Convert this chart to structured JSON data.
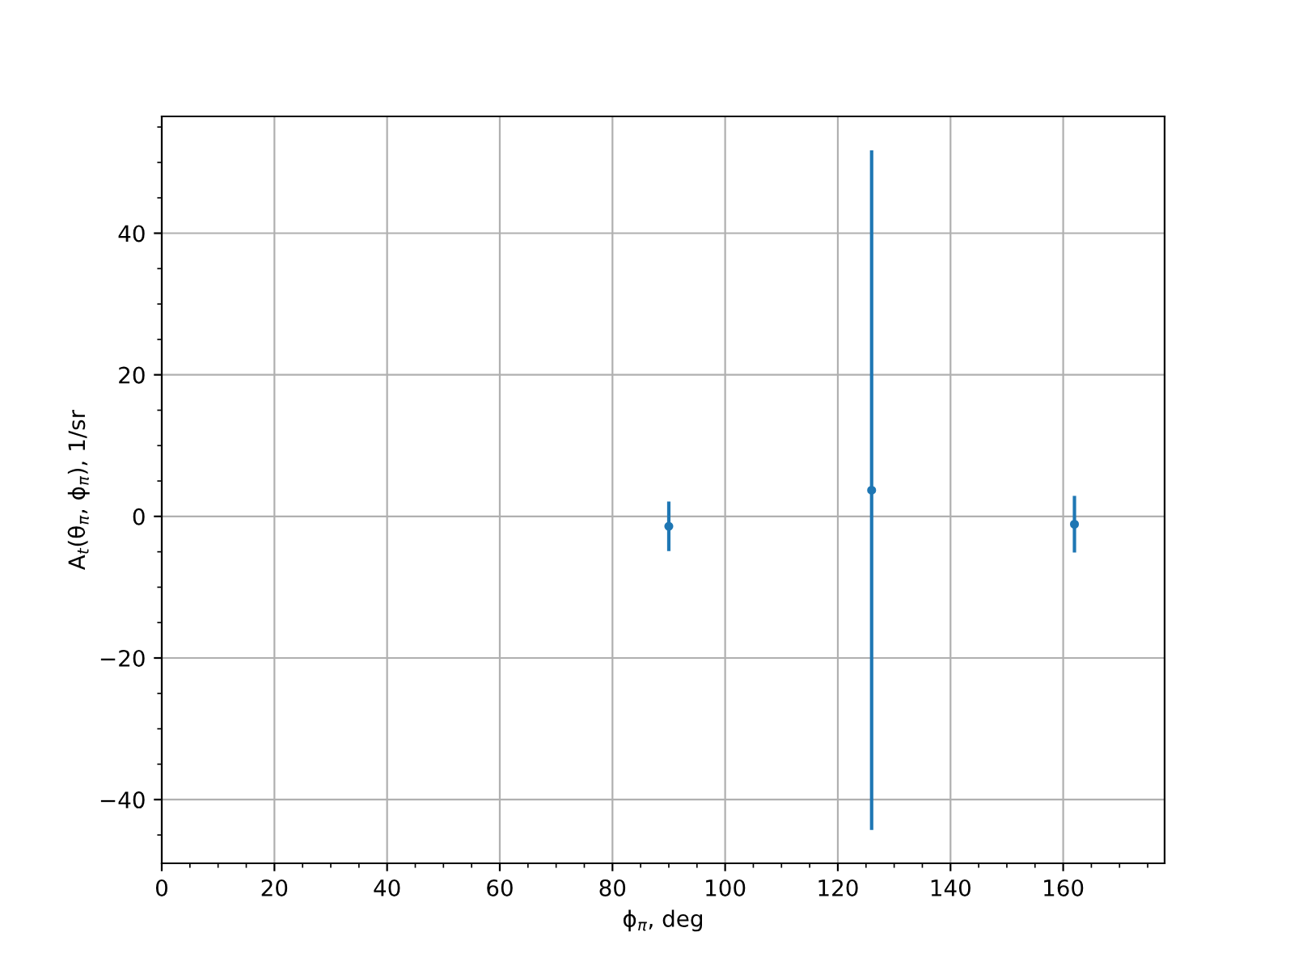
{
  "chart_data": {
    "type": "scatter",
    "xlabel": "ϕ$_{π}$, deg",
    "ylabel": "A$_{t}$(θ$_{π}$, ϕ$_{π}$), 1/sr",
    "x": [
      90,
      126,
      162
    ],
    "series": [
      {
        "color": "#1f77b4",
        "values": [
          -1.4,
          3.7,
          -1.1
        ],
        "errors": [
          3.5,
          48,
          4
        ]
      }
    ],
    "marker": "circle",
    "grid": true,
    "xlim": [
      0,
      178
    ],
    "ylim": [
      -49,
      56.5
    ],
    "xticks": [
      0,
      20,
      40,
      60,
      80,
      100,
      120,
      140,
      160,
      {
        "value": 5,
        "label": null
      },
      {
        "value": 10,
        "label": null
      },
      {
        "value": 15,
        "label": null
      },
      {
        "value": 25,
        "label": null
      },
      {
        "value": 30,
        "label": null
      },
      {
        "value": 35,
        "label": null
      },
      {
        "value": 45,
        "label": null
      },
      {
        "value": 50,
        "label": null
      },
      {
        "value": 55,
        "label": null
      },
      {
        "value": 65,
        "label": null
      },
      {
        "value": 70,
        "label": null
      },
      {
        "value": 75,
        "label": null
      },
      {
        "value": 85,
        "label": null
      },
      {
        "value": 90,
        "label": null
      },
      {
        "value": 95,
        "label": null
      },
      {
        "value": 105,
        "label": null
      },
      {
        "value": 110,
        "label": null
      },
      {
        "value": 115,
        "label": null
      },
      {
        "value": 125,
        "label": null
      },
      {
        "value": 130,
        "label": null
      },
      {
        "value": 135,
        "label": null
      },
      {
        "value": 145,
        "label": null
      },
      {
        "value": 150,
        "label": null
      },
      {
        "value": 155,
        "label": null
      },
      {
        "value": 165,
        "label": null
      },
      {
        "value": 170,
        "label": null
      },
      {
        "value": 175,
        "label": null
      }
    ],
    "yticks": [
      -40,
      -20,
      0,
      20,
      40,
      {
        "value": -45,
        "label": null
      },
      {
        "value": -35,
        "label": null
      },
      {
        "value": -30,
        "label": null
      },
      {
        "value": -25,
        "label": null
      },
      {
        "value": -15,
        "label": null
      },
      {
        "value": -10,
        "label": null
      },
      {
        "value": -5,
        "label": null
      },
      {
        "value": 5,
        "label": null
      },
      {
        "value": 10,
        "label": null
      },
      {
        "value": 15,
        "label": null
      },
      {
        "value": 25,
        "label": null
      },
      {
        "value": 30,
        "label": null
      },
      {
        "value": 35,
        "label": null
      },
      {
        "value": 45,
        "label": null
      },
      {
        "value": 50,
        "label": null
      },
      {
        "value": 55,
        "label": null
      }
    ]
  }
}
